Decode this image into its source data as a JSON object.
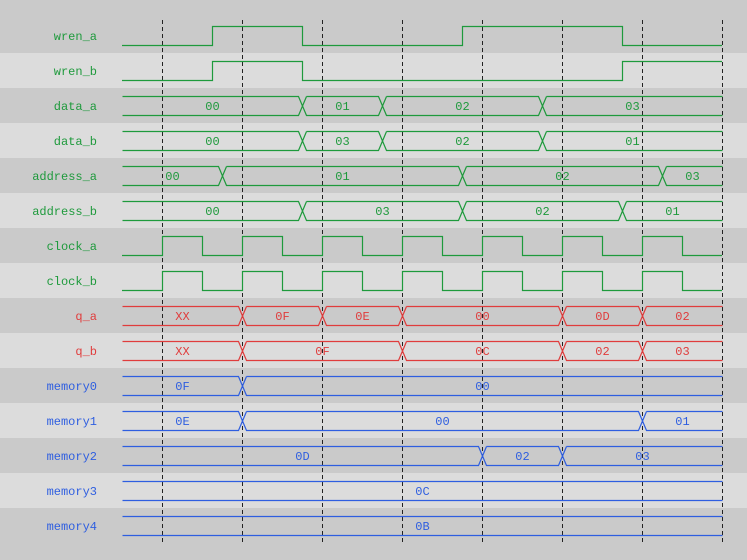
{
  "colors": {
    "row_dark": "#cacaca",
    "row_light": "#dcdcdc",
    "input": "#1e9a3c",
    "output": "#e03c3c",
    "memory": "#2e5ee0",
    "grid": "#222222"
  },
  "time": {
    "end": 60,
    "grid": [
      4,
      12,
      20,
      28,
      36,
      44,
      52,
      60
    ]
  },
  "signals": [
    {
      "name": "wren_a",
      "kind": "bit",
      "color": "input",
      "initial": 0,
      "edges": [
        9,
        18,
        34,
        50
      ]
    },
    {
      "name": "wren_b",
      "kind": "bit",
      "color": "input",
      "initial": 0,
      "edges": [
        9,
        18,
        50
      ]
    },
    {
      "name": "data_a",
      "kind": "bus",
      "color": "input",
      "changes": [
        18,
        26,
        42
      ],
      "values": [
        "00",
        "01",
        "02",
        "03"
      ]
    },
    {
      "name": "data_b",
      "kind": "bus",
      "color": "input",
      "changes": [
        18,
        26,
        42
      ],
      "values": [
        "00",
        "03",
        "02",
        "01"
      ]
    },
    {
      "name": "address_a",
      "kind": "bus",
      "color": "input",
      "changes": [
        10,
        34,
        54
      ],
      "values": [
        "00",
        "01",
        "02",
        "03"
      ]
    },
    {
      "name": "address_b",
      "kind": "bus",
      "color": "input",
      "changes": [
        18,
        34,
        50
      ],
      "values": [
        "00",
        "03",
        "02",
        "01"
      ]
    },
    {
      "name": "clock_a",
      "kind": "bit",
      "color": "input",
      "initial": 0,
      "edges": [
        4,
        8,
        12,
        16,
        20,
        24,
        28,
        32,
        36,
        40,
        44,
        48,
        52,
        56
      ]
    },
    {
      "name": "clock_b",
      "kind": "bit",
      "color": "input",
      "initial": 0,
      "edges": [
        4,
        8,
        12,
        16,
        20,
        24,
        28,
        32,
        36,
        40,
        44,
        48,
        52,
        56
      ]
    },
    {
      "name": "q_a",
      "kind": "bus",
      "color": "output",
      "changes": [
        12,
        20,
        28,
        44,
        52
      ],
      "values": [
        "XX",
        "0F",
        "0E",
        "00",
        "0D",
        "02"
      ]
    },
    {
      "name": "q_b",
      "kind": "bus",
      "color": "output",
      "changes": [
        12,
        28,
        44,
        52
      ],
      "values": [
        "XX",
        "0F",
        "0C",
        "02",
        "03"
      ]
    },
    {
      "name": "memory0",
      "kind": "bus",
      "color": "memory",
      "changes": [
        12
      ],
      "values": [
        "0F",
        "00"
      ]
    },
    {
      "name": "memory1",
      "kind": "bus",
      "color": "memory",
      "changes": [
        12,
        52
      ],
      "values": [
        "0E",
        "00",
        "01"
      ]
    },
    {
      "name": "memory2",
      "kind": "bus",
      "color": "memory",
      "changes": [
        36,
        44
      ],
      "values": [
        "0D",
        "02",
        "03"
      ]
    },
    {
      "name": "memory3",
      "kind": "bus",
      "color": "memory",
      "changes": [],
      "values": [
        "0C"
      ]
    },
    {
      "name": "memory4",
      "kind": "bus",
      "color": "memory",
      "changes": [],
      "values": [
        "0B"
      ]
    }
  ]
}
